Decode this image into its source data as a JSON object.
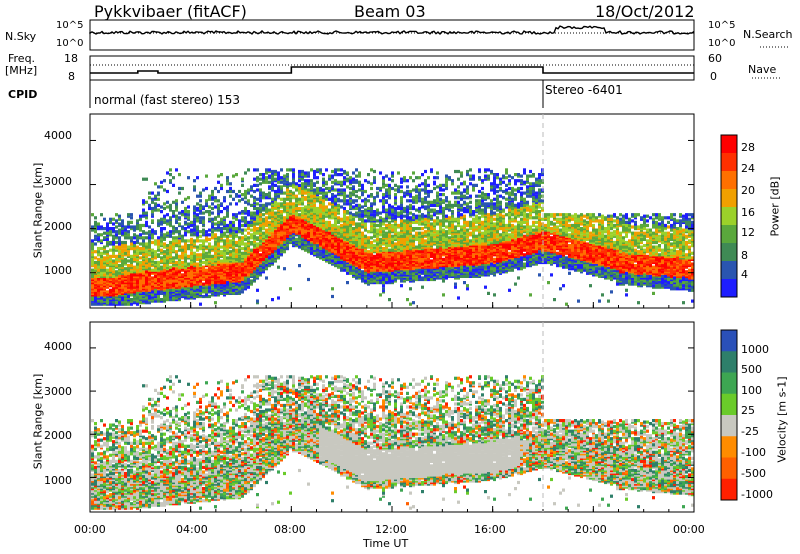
{
  "header": {
    "station": "Pykkvibaer (fitACF)",
    "beam": "Beam 03",
    "date": "18/Oct/2012"
  },
  "top_strip": {
    "nsky_label": "N.Sky",
    "nsearch_label": "N.Search",
    "left_ticks": [
      "10^5",
      "10^0"
    ],
    "right_ticks": [
      "10^5",
      "10^0"
    ],
    "freq_label_line1": "Freq.",
    "freq_label_line2": "[MHz]",
    "freq_ticks": [
      "18",
      "8"
    ],
    "nave_label": "Nave",
    "nave_ticks": [
      "60",
      "0"
    ],
    "cpid_label": "CPID",
    "cpid_segments": [
      {
        "start_hour": 0,
        "text": "normal (fast stereo) 153"
      },
      {
        "start_hour": 18,
        "text": "Stereo -6401"
      }
    ]
  },
  "colors": {
    "power_scale": [
      "#1e1eff",
      "#2a55b0",
      "#3f8a55",
      "#5aa83c",
      "#9bd12a",
      "#f0a000",
      "#ff7000",
      "#ff3000",
      "#ff0000"
    ],
    "velocity_scale": [
      "#2a50b8",
      "#2e7f6a",
      "#3da652",
      "#6acb2a",
      "#c8c8c0",
      "#ff8c00",
      "#ff6000",
      "#ff2000"
    ]
  },
  "chart_data": [
    {
      "type": "heatmap",
      "panel": "power",
      "ylabel": "Slant Range [km]",
      "yticks": [
        "1000",
        "2000",
        "3000",
        "4000"
      ],
      "ylim": [
        200,
        4600
      ],
      "xlim_hours": [
        0,
        24
      ],
      "colorbar_label": "Power [dB]",
      "colorbar_ticks": [
        "4",
        "8",
        "12",
        "16",
        "20",
        "24",
        "28"
      ],
      "colorbar_range": [
        0,
        32
      ],
      "vertical_marker_hour": 18
    },
    {
      "type": "heatmap",
      "panel": "velocity",
      "ylabel": "Slant Range [km]",
      "yticks": [
        "1000",
        "2000",
        "3000",
        "4000"
      ],
      "ylim": [
        200,
        4600
      ],
      "xlim_hours": [
        0,
        24
      ],
      "colorbar_label": "Velocity [m s-1]",
      "colorbar_ticks": [
        "1000",
        "500",
        "100",
        "25",
        "-25",
        "-100",
        "-500",
        "-1000"
      ],
      "vertical_marker_hour": 18
    }
  ],
  "xaxis": {
    "ticks": [
      "00:00",
      "04:00",
      "08:00",
      "12:00",
      "16:00",
      "20:00",
      "00:00"
    ],
    "label": "Time UT"
  }
}
